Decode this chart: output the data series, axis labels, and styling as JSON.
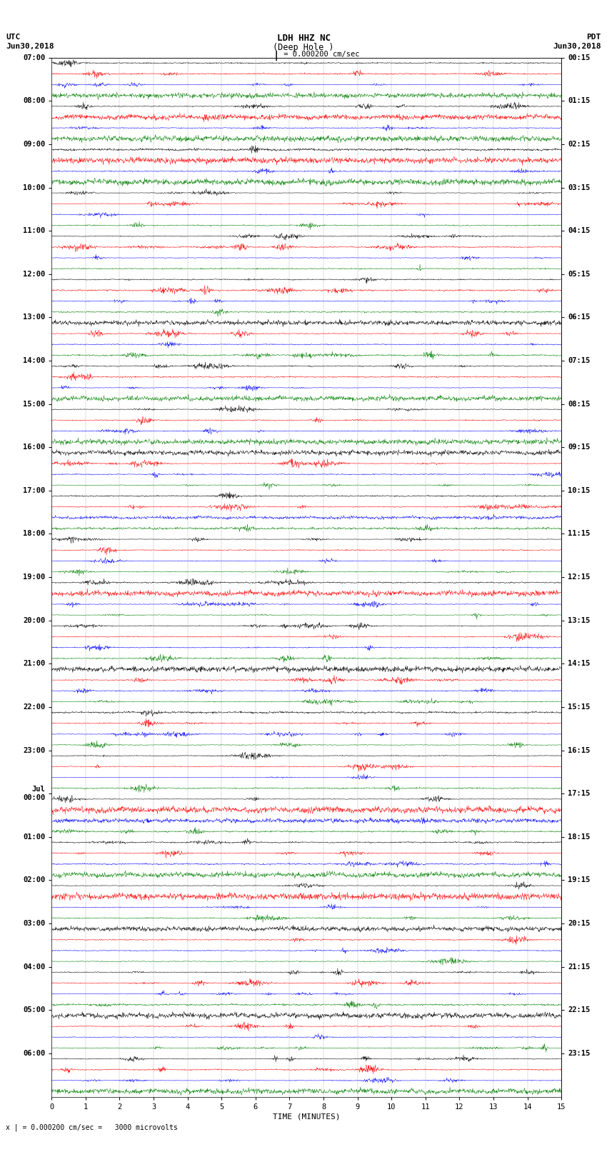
{
  "title_center": "LDH HHZ NC\n(Deep Hole )",
  "title_left": "UTC\nJun30,2018",
  "title_right": "PDT\nJun30,2018",
  "scale_label": "= 0.000200 cm/sec",
  "footer_label": "x | = 0.000200 cm/sec =   3000 microvolts",
  "xlabel": "TIME (MINUTES)",
  "trace_colors": [
    "black",
    "red",
    "blue",
    "green"
  ],
  "utc_labels": [
    "07:00",
    "08:00",
    "09:00",
    "10:00",
    "11:00",
    "12:00",
    "13:00",
    "14:00",
    "15:00",
    "16:00",
    "17:00",
    "18:00",
    "19:00",
    "20:00",
    "21:00",
    "22:00",
    "23:00",
    "Jul\n00:00",
    "01:00",
    "02:00",
    "03:00",
    "04:00",
    "05:00",
    "06:00"
  ],
  "pdt_labels": [
    "00:15",
    "01:15",
    "02:15",
    "03:15",
    "04:15",
    "05:15",
    "06:15",
    "07:15",
    "08:15",
    "09:15",
    "10:15",
    "11:15",
    "12:15",
    "13:15",
    "14:15",
    "15:15",
    "16:15",
    "17:15",
    "18:15",
    "19:15",
    "20:15",
    "21:15",
    "22:15",
    "23:15"
  ],
  "n_groups": 24,
  "traces_per_group": 4,
  "minutes": 15,
  "figwidth": 8.5,
  "figheight": 16.13,
  "dpi": 100,
  "bg_color": "white",
  "noise_seed": 42
}
